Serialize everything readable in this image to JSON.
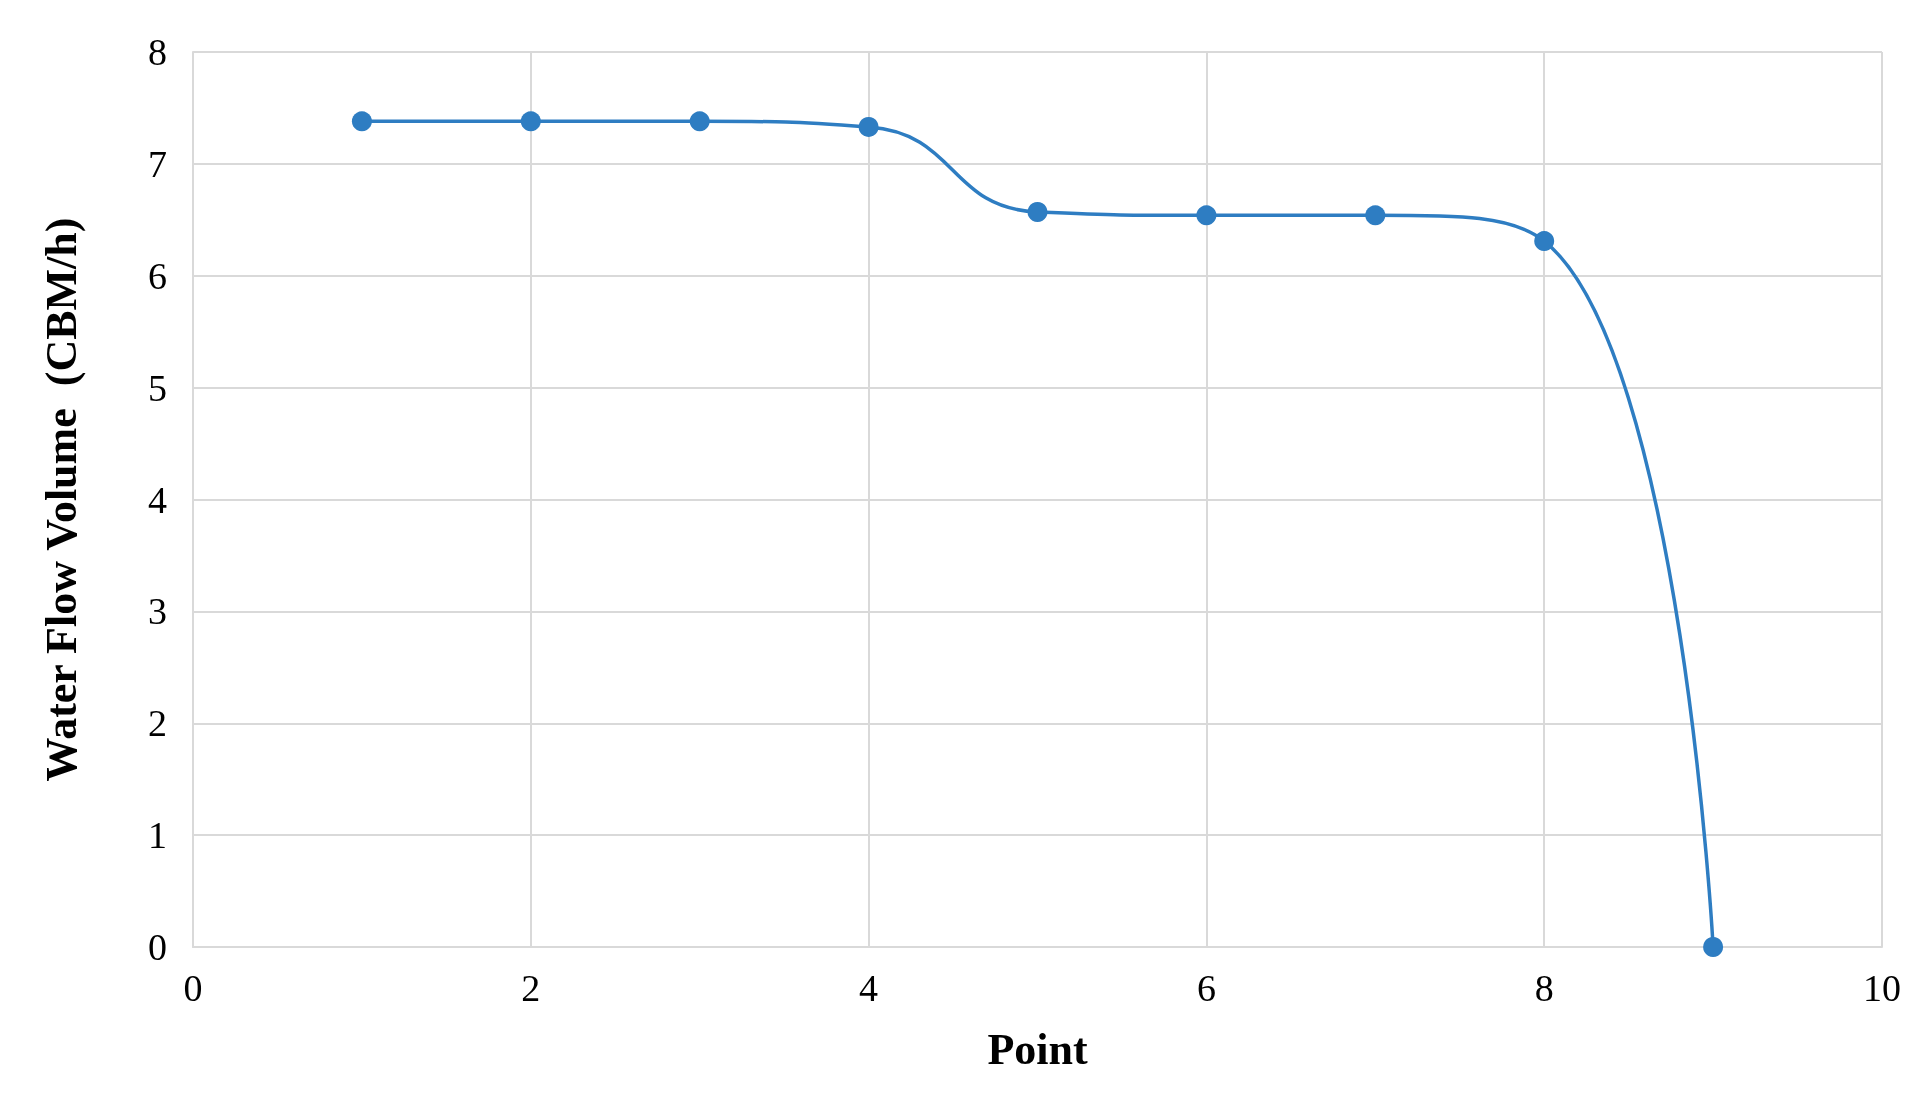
{
  "chart_data": {
    "type": "line",
    "xlabel": "Point",
    "ylabel": "Water Flow Volume  (CBM/h)",
    "x": [
      1,
      2,
      3,
      4,
      5,
      6,
      7,
      8,
      9
    ],
    "series": [
      {
        "color": "#2e7dc2",
        "values": [
          7.38,
          7.38,
          7.38,
          7.33,
          6.57,
          6.54,
          6.54,
          6.31,
          0
        ]
      }
    ],
    "xlim": [
      0,
      10
    ],
    "xticks": [
      0,
      2,
      4,
      6,
      8,
      10
    ],
    "ylim": [
      0,
      8
    ],
    "yticks": [
      0,
      1,
      2,
      3,
      4,
      5,
      6,
      7,
      8
    ],
    "grid": true,
    "marker": "circle",
    "line_style": "solid"
  }
}
